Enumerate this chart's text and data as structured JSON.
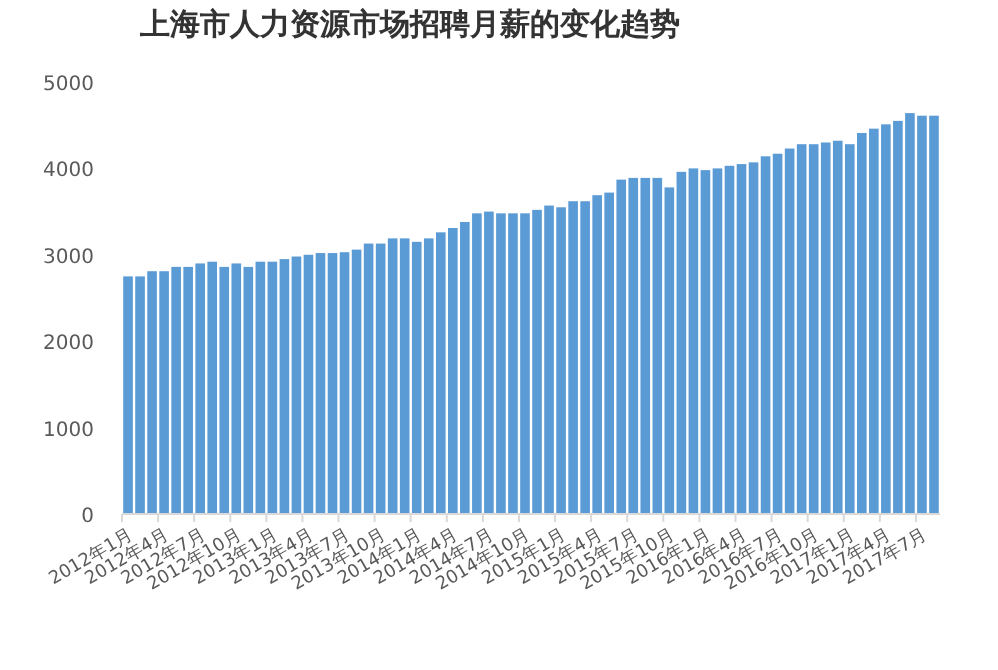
{
  "chart_data": {
    "type": "bar",
    "title": "上海市人力资源市场招聘月薪的变化趋势",
    "categories": [
      "2012年1月",
      null,
      null,
      "2012年4月",
      null,
      null,
      "2012年7月",
      null,
      null,
      "2012年10月",
      null,
      null,
      "2013年1月",
      null,
      null,
      "2013年4月",
      null,
      null,
      "2013年7月",
      null,
      null,
      "2013年10月",
      null,
      null,
      "2014年1月",
      null,
      null,
      "2014年4月",
      null,
      null,
      "2014年7月",
      null,
      null,
      "2014年10月",
      null,
      null,
      "2015年1月",
      null,
      null,
      "2015年4月",
      null,
      null,
      "2015年7月",
      null,
      null,
      "2015年10月",
      null,
      null,
      "2016年1月",
      null,
      null,
      "2016年4月",
      null,
      null,
      "2016年7月",
      null,
      null,
      "2016年10月",
      null,
      null,
      "2017年1月",
      null,
      null,
      "2017年4月",
      null,
      null,
      "2017年7月",
      null
    ],
    "values": [
      2750,
      2750,
      2810,
      2810,
      2860,
      2860,
      2900,
      2920,
      2860,
      2900,
      2860,
      2920,
      2920,
      2950,
      2980,
      3000,
      3020,
      3020,
      3030,
      3060,
      3130,
      3130,
      3190,
      3190,
      3150,
      3190,
      3260,
      3310,
      3380,
      3480,
      3500,
      3480,
      3480,
      3480,
      3520,
      3570,
      3550,
      3620,
      3620,
      3690,
      3720,
      3870,
      3890,
      3890,
      3890,
      3780,
      3960,
      4000,
      3980,
      4000,
      4030,
      4050,
      4070,
      4140,
      4170,
      4230,
      4280,
      4280,
      4300,
      4320,
      4280,
      4410,
      4460,
      4510,
      4550,
      4640,
      4610,
      4610
    ],
    "color": "#5b9bd5",
    "ylim": [
      0,
      5000
    ],
    "yticks": [
      0,
      1000,
      2000,
      3000,
      4000,
      5000
    ]
  }
}
